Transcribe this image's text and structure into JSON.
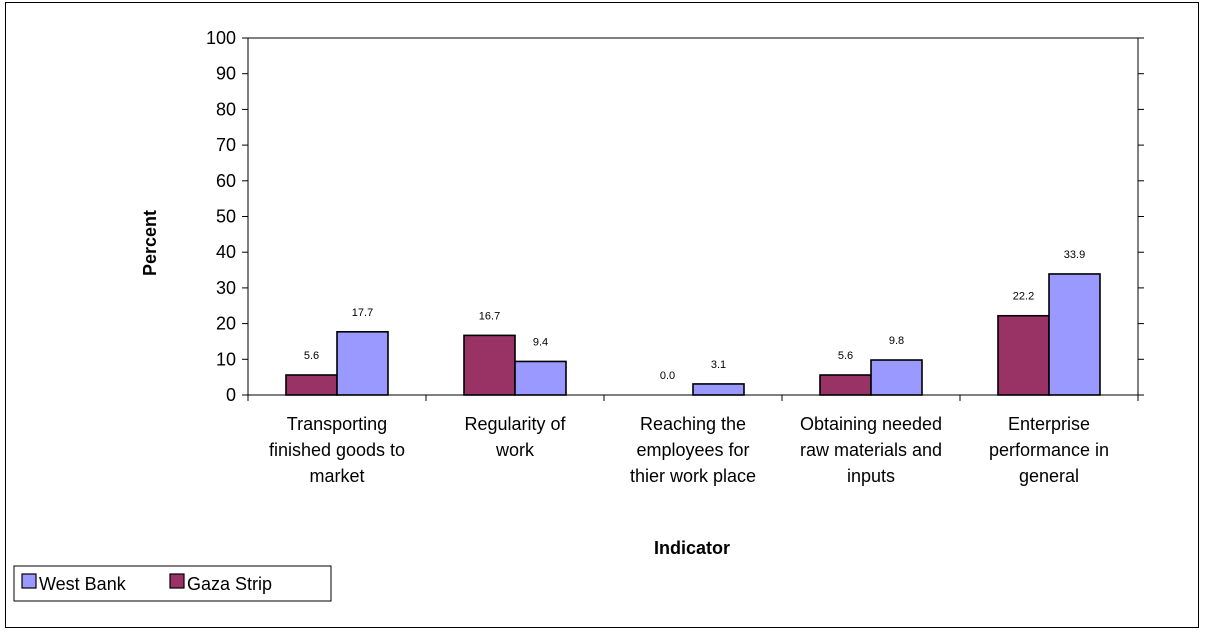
{
  "chart_data": {
    "type": "bar",
    "title": "",
    "xlabel": "Indicator",
    "ylabel": "Percent",
    "ylim": [
      0,
      100
    ],
    "yticks": [
      "0",
      "10",
      "20",
      "30",
      "40",
      "50",
      "60",
      "70",
      "80",
      "90",
      "100"
    ],
    "categories": [
      [
        "Transporting",
        "finished goods to",
        "market"
      ],
      [
        "Regularity of",
        "work"
      ],
      [
        "Reaching the",
        "employees for",
        "thier  work place"
      ],
      [
        "Obtaining needed",
        "raw materials and",
        "inputs"
      ],
      [
        "Enterprise",
        "performance in",
        "general"
      ]
    ],
    "series": [
      {
        "name": "Gaza Strip",
        "color": "#993366",
        "values": [
          5.6,
          16.7,
          0.0,
          5.6,
          22.2
        ],
        "labels": [
          "5.6",
          "16.7",
          "0.0",
          "5.6",
          "22.2"
        ]
      },
      {
        "name": "West Bank",
        "color": "#9999ff",
        "values": [
          17.7,
          9.4,
          3.1,
          9.8,
          33.9
        ],
        "labels": [
          "17.7",
          "9.4",
          "3.1",
          "9.8",
          "33.9"
        ]
      }
    ],
    "legend": {
      "placement": "bottom-left",
      "entries": [
        {
          "name": "West Bank",
          "color": "#9999ff"
        },
        {
          "name": "Gaza Strip",
          "color": "#993366"
        }
      ]
    },
    "grid": false
  }
}
